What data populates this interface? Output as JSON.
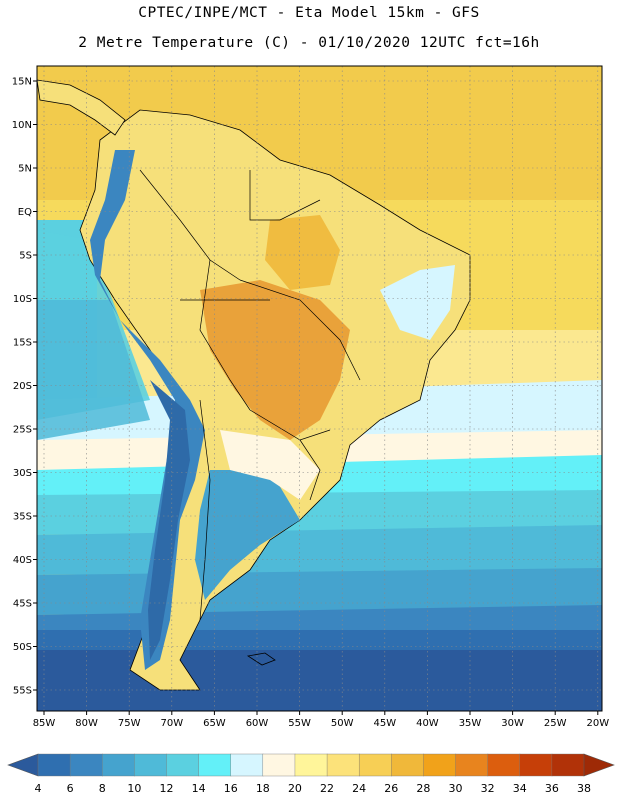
{
  "header": {
    "line1": "CPTEC/INPE/MCT -  Eta Model 15km - GFS",
    "line2": "2 Metre Temperature (C) - 01/10/2020 12UTC fct=16h"
  },
  "map": {
    "lat_labels": [
      "15N",
      "10N",
      "5N",
      "EQ",
      "5S",
      "10S",
      "15S",
      "20S",
      "25S",
      "30S",
      "35S",
      "40S",
      "45S",
      "50S",
      "55S"
    ],
    "lon_labels": [
      "85W",
      "80W",
      "75W",
      "70W",
      "65W",
      "60W",
      "55W",
      "50W",
      "45W",
      "40W",
      "35W",
      "30W",
      "25W",
      "20W"
    ],
    "colors": {
      "ocean_warm": "#f2cb4c",
      "land_hot": "#e9a23a",
      "land_warm": "#f6e07a",
      "andes_cold": "#2e6aa8",
      "grid": "#888888",
      "border": "#000000"
    }
  },
  "legend": {
    "values": [
      "4",
      "6",
      "8",
      "10",
      "12",
      "14",
      "16",
      "18",
      "20",
      "22",
      "24",
      "26",
      "28",
      "30",
      "32",
      "34",
      "36",
      "38"
    ],
    "colors": [
      "#2b5a9c",
      "#2f6fb0",
      "#3b86c0",
      "#45a3ce",
      "#4fbad8",
      "#5bd0e0",
      "#63f0f8",
      "#d6f6ff",
      "#fff7e2",
      "#fff59a",
      "#fce27a",
      "#f7cf55",
      "#f0b83a",
      "#f1a21a",
      "#e8841e",
      "#dc5e0e",
      "#c63f08",
      "#b13208",
      "#9e2a06"
    ]
  }
}
